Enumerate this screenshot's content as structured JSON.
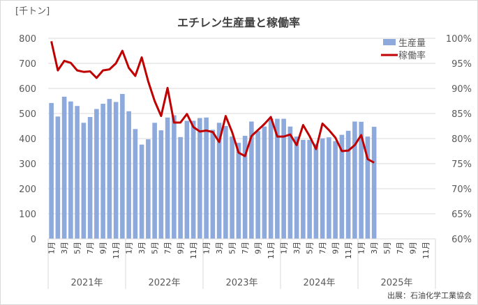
{
  "chart_data": {
    "type": "bar+line",
    "title": "エチレン生産量と稼働率",
    "ylabel_left": "[千トン]",
    "source": "出展：石油化学工業協会",
    "ylim_left": [
      0,
      800
    ],
    "ylim_right": [
      60,
      100
    ],
    "yticks_left": [
      "0",
      "100",
      "200",
      "300",
      "400",
      "500",
      "600",
      "700",
      "800"
    ],
    "yticks_right": [
      "60%",
      "65%",
      "70%",
      "75%",
      "80%",
      "85%",
      "90%",
      "95%",
      "100%"
    ],
    "years": [
      "2021年",
      "2022年",
      "2023年",
      "2024年",
      "2025年"
    ],
    "month_labels": [
      "1月",
      "",
      "3月",
      "",
      "5月",
      "",
      "7月",
      "",
      "9月",
      "",
      "11月",
      ""
    ],
    "legend_position": "top-right",
    "series": [
      {
        "name": "生産量",
        "type": "bar",
        "axis": "left",
        "color": "#8eaadc",
        "values": [
          542,
          488,
          567,
          548,
          530,
          463,
          486,
          518,
          539,
          558,
          546,
          578,
          509,
          438,
          376,
          397,
          463,
          433,
          484,
          493,
          406,
          471,
          471,
          482,
          484,
          435,
          463,
          450,
          408,
          383,
          411,
          468,
          430,
          448,
          480,
          479,
          479,
          448,
          408,
          395,
          395,
          379,
          401,
          405,
          390,
          415,
          431,
          468,
          467,
          408,
          447
        ]
      },
      {
        "name": "稼働率",
        "type": "line",
        "axis": "right",
        "unit": "%",
        "color": "#c00000",
        "values": [
          99.4,
          93.6,
          95.5,
          95.1,
          93.6,
          93.3,
          93.4,
          92.1,
          93.6,
          93.8,
          95.0,
          97.5,
          94.1,
          92.5,
          96.2,
          91.4,
          87.5,
          84.5,
          90.1,
          83.2,
          83.2,
          84.9,
          82.3,
          81.4,
          81.6,
          81.3,
          79.3,
          84.5,
          81.3,
          77.2,
          76.5,
          80.5,
          81.7,
          82.9,
          84.3,
          80.4,
          80.4,
          80.8,
          78.7,
          82.7,
          80.5,
          77.9,
          83.0,
          81.7,
          80.2,
          77.5,
          77.6,
          78.7,
          80.7,
          75.9,
          75.2
        ]
      }
    ]
  }
}
